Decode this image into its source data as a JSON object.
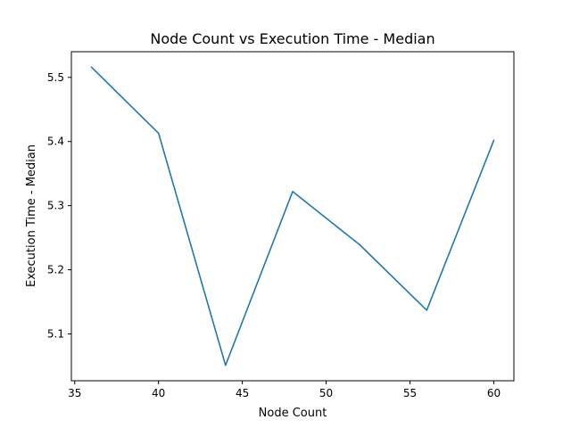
{
  "chart_data": {
    "type": "line",
    "title": "Node Count vs Execution Time - Median",
    "xlabel": "Node Count",
    "ylabel": "Execution Time - Median",
    "xlim": [
      34.8,
      61.2
    ],
    "ylim": [
      5.027,
      5.54
    ],
    "x_ticks": [
      35,
      40,
      45,
      50,
      55,
      60
    ],
    "y_ticks": [
      5.1,
      5.2,
      5.3,
      5.4,
      5.5
    ],
    "grid": false,
    "legend": "none",
    "series": [
      {
        "color": "#1f77b4",
        "x": [
          36,
          40,
          44,
          48,
          52,
          56,
          60
        ],
        "y": [
          5.516,
          5.413,
          5.051,
          5.322,
          5.239,
          5.137,
          5.402
        ]
      }
    ]
  }
}
